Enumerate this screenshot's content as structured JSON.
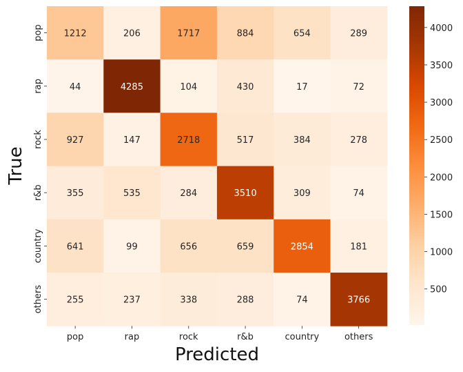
{
  "chart_data": {
    "type": "heatmap",
    "xlabel": "Predicted",
    "ylabel": "True",
    "x_categories": [
      "pop",
      "rap",
      "rock",
      "r&b",
      "country",
      "others"
    ],
    "y_categories": [
      "pop",
      "rap",
      "rock",
      "r&b",
      "country",
      "others"
    ],
    "values": [
      [
        1212,
        206,
        1717,
        884,
        654,
        289
      ],
      [
        44,
        4285,
        104,
        430,
        17,
        72
      ],
      [
        927,
        147,
        2718,
        517,
        384,
        278
      ],
      [
        355,
        535,
        284,
        3510,
        309,
        74
      ],
      [
        641,
        99,
        656,
        659,
        2854,
        181
      ],
      [
        255,
        237,
        338,
        288,
        74,
        3766
      ]
    ],
    "colormap": "Oranges",
    "colorbar_range": [
      17,
      4285
    ],
    "colorbar_ticks": [
      500,
      1000,
      1500,
      2000,
      2500,
      3000,
      3500,
      4000
    ],
    "colors": {
      "low": "#fff5eb",
      "high": "#7f2704",
      "text_dark": "#262626",
      "text_light": "#ffffff"
    }
  }
}
